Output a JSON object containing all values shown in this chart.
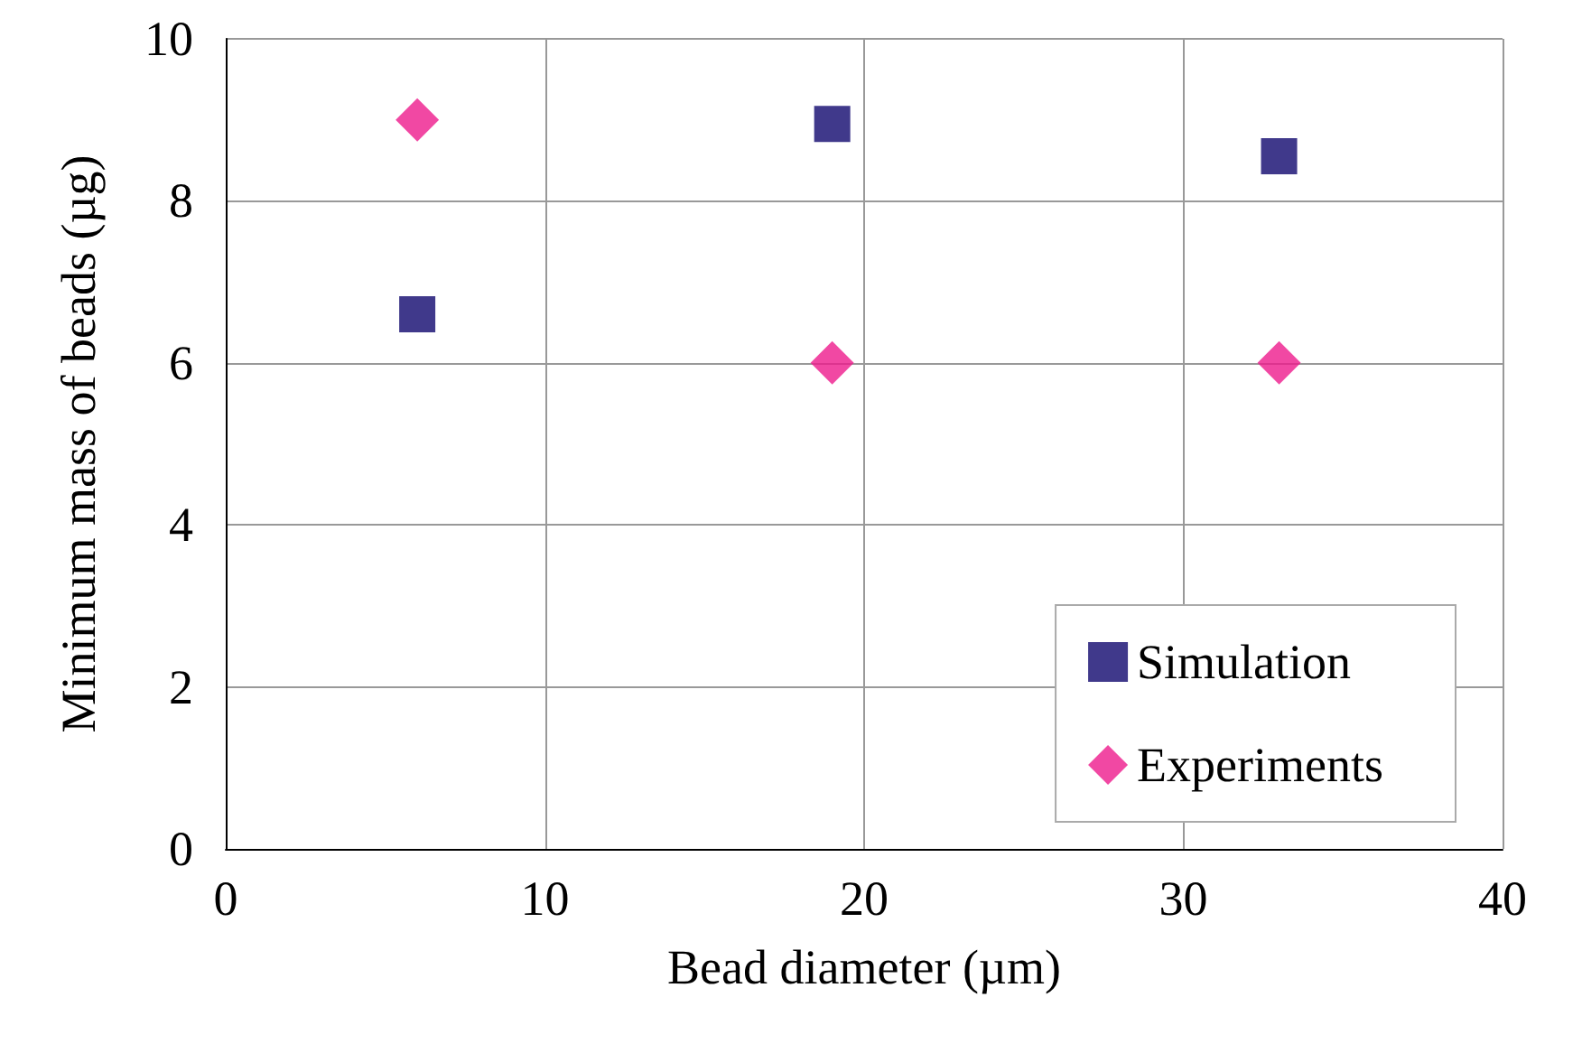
{
  "chart_data": {
    "type": "scatter",
    "xlabel": "Bead diameter (µm)",
    "ylabel": "Minimum mass of beads (µg)",
    "xlim": [
      0,
      40
    ],
    "xticks": [
      0,
      10,
      20,
      30,
      40
    ],
    "ylim": [
      0,
      10
    ],
    "yticks": [
      0,
      2,
      4,
      6,
      8,
      10
    ],
    "grid": true,
    "legend": "bottom right",
    "series": [
      {
        "name": "Simulation",
        "color": "#10086e",
        "marker": "square",
        "x": [
          6,
          19,
          33
        ],
        "values": [
          6.6,
          8.95,
          8.55
        ]
      },
      {
        "name": "Experiments",
        "color": "#ee1a8c",
        "marker": "diamond",
        "x": [
          6,
          19,
          33
        ],
        "values": [
          9,
          6,
          6
        ]
      }
    ]
  }
}
